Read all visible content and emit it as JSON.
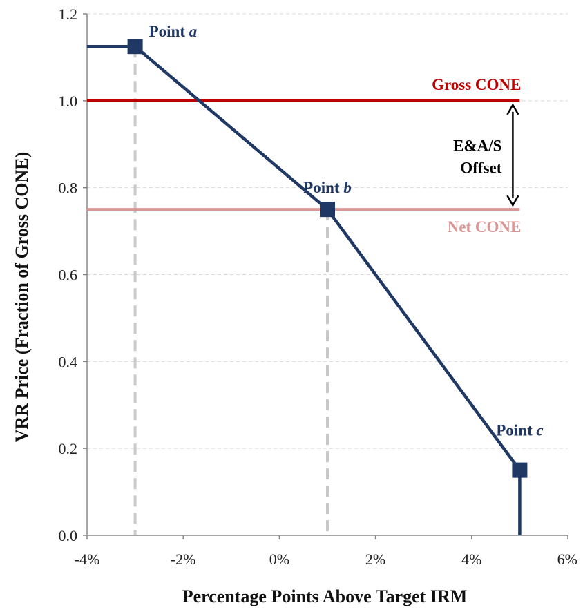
{
  "chart_data": {
    "type": "line",
    "xlabel": "Percentage Points Above Target IRM",
    "ylabel": "VRR Price (Fraction of Gross CONE)",
    "xlim": [
      -0.04,
      0.06
    ],
    "ylim": [
      0,
      1.2
    ],
    "x_ticks": [
      -0.04,
      -0.02,
      0,
      0.02,
      0.04,
      0.06
    ],
    "x_tick_labels": [
      "-4%",
      "-2%",
      "0%",
      "2%",
      "4%",
      "6%"
    ],
    "y_ticks": [
      0,
      0.2,
      0.4,
      0.6,
      0.8,
      1.0,
      1.2
    ],
    "y_tick_labels": [
      "0.0",
      "0.2",
      "0.4",
      "0.6",
      "0.8",
      "1.0",
      "1.2"
    ],
    "grid": "horizontal-dashed",
    "curve": {
      "x": [
        -0.04,
        -0.03,
        0.01,
        0.05,
        0.05
      ],
      "y": [
        1.125,
        1.125,
        0.75,
        0.15,
        0.0
      ]
    },
    "points": [
      {
        "label": "Point",
        "letter": "a",
        "x": -0.03,
        "y": 1.125
      },
      {
        "label": "Point",
        "letter": "b",
        "x": 0.01,
        "y": 0.75
      },
      {
        "label": "Point",
        "letter": "c",
        "x": 0.05,
        "y": 0.15
      }
    ],
    "reference_lines": [
      {
        "name": "Gross CONE",
        "y": 1.0,
        "color": "#c00000"
      },
      {
        "name": "Net CONE",
        "y": 0.75,
        "color": "#d99694"
      }
    ],
    "offset_annotation": {
      "line1": "E&A/S",
      "line2": "Offset",
      "x": 0.05,
      "y_from": 1.0,
      "y_to": 0.75
    },
    "series_color": "#1f3864",
    "vertical_guides_x": [
      -0.03,
      0.01
    ],
    "guide_color": "#c8c8c8"
  }
}
